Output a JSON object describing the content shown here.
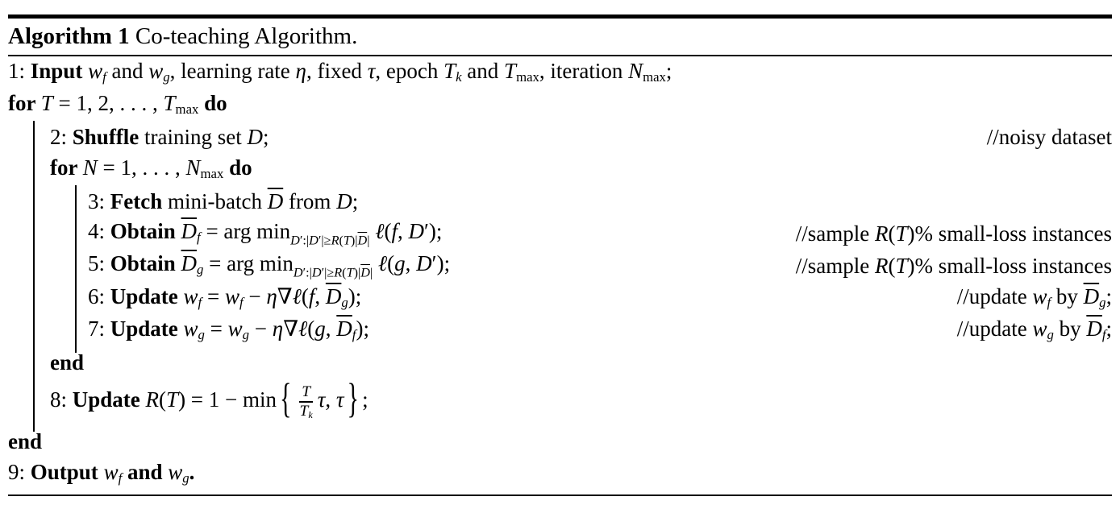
{
  "colors": {
    "text": "#000000",
    "background": "#ffffff",
    "rule": "#000000"
  },
  "header": {
    "segments": [
      {
        "t": "Algorithm 1 ",
        "s": "b"
      },
      {
        "t": "Co-teaching Algorithm.",
        "s": "p"
      }
    ]
  },
  "lines": [
    {
      "name": "input-line",
      "indent": 0,
      "content": [
        {
          "t": "1: ",
          "s": "p"
        },
        {
          "t": "Input ",
          "s": "b"
        },
        {
          "t": "w",
          "s": "i"
        },
        {
          "t": "f",
          "s": "si"
        },
        {
          "t": " and ",
          "s": "p"
        },
        {
          "t": "w",
          "s": "i"
        },
        {
          "t": "g",
          "s": "si"
        },
        {
          "t": ", learning rate ",
          "s": "p"
        },
        {
          "t": "η",
          "s": "i"
        },
        {
          "t": ", fixed ",
          "s": "p"
        },
        {
          "t": "τ",
          "s": "i"
        },
        {
          "t": ", epoch ",
          "s": "p"
        },
        {
          "t": "T",
          "s": "i"
        },
        {
          "t": "k",
          "s": "si"
        },
        {
          "t": " and ",
          "s": "p"
        },
        {
          "t": "T",
          "s": "i"
        },
        {
          "t": "max",
          "s": "sp"
        },
        {
          "t": ", iteration ",
          "s": "p"
        },
        {
          "t": "N",
          "s": "i"
        },
        {
          "t": "max",
          "s": "sp"
        },
        {
          "t": ";",
          "s": "p"
        }
      ]
    },
    {
      "name": "outer-for-loop",
      "indent": 0,
      "content": [
        {
          "t": "for ",
          "s": "b"
        },
        {
          "t": "T",
          "s": "i"
        },
        {
          "t": " = 1, 2, . . . , ",
          "s": "p"
        },
        {
          "t": "T",
          "s": "i"
        },
        {
          "t": "max",
          "s": "sp"
        },
        {
          "t": " ",
          "s": "p"
        },
        {
          "t": "do",
          "s": "b"
        }
      ]
    },
    {
      "name": "shuffle-line",
      "indent": 1,
      "content": [
        {
          "t": "2: ",
          "s": "p"
        },
        {
          "t": "Shuffle",
          "s": "b"
        },
        {
          "t": " training set ",
          "s": "p"
        },
        {
          "t": "D",
          "s": "c"
        },
        {
          "t": ";",
          "s": "p"
        }
      ],
      "comment": [
        {
          "t": "//noisy dataset",
          "s": "p"
        }
      ]
    },
    {
      "name": "inner-for-loop",
      "indent": 1,
      "content": [
        {
          "t": "for ",
          "s": "b"
        },
        {
          "t": "N",
          "s": "i"
        },
        {
          "t": " = 1, . . . , ",
          "s": "p"
        },
        {
          "t": "N",
          "s": "i"
        },
        {
          "t": "max",
          "s": "sp"
        },
        {
          "t": " ",
          "s": "p"
        },
        {
          "t": "do",
          "s": "b"
        }
      ]
    },
    {
      "name": "fetch-line",
      "indent": 2,
      "content": [
        {
          "t": "3: ",
          "s": "p"
        },
        {
          "t": "Fetch",
          "s": "b"
        },
        {
          "t": " mini-batch ",
          "s": "p"
        },
        {
          "t": "D",
          "s": "cb"
        },
        {
          "t": " from ",
          "s": "p"
        },
        {
          "t": "D",
          "s": "c"
        },
        {
          "t": ";",
          "s": "p"
        }
      ]
    },
    {
      "name": "obtain-f-line",
      "indent": 2,
      "content": [
        {
          "t": "4: ",
          "s": "p"
        },
        {
          "t": "Obtain ",
          "s": "b"
        },
        {
          "t": "D",
          "s": "cb"
        },
        {
          "t": "f",
          "s": "si"
        },
        {
          "t": " = arg min",
          "s": "p"
        },
        {
          "sub": [
            {
              "t": "D",
              "s": "c"
            },
            {
              "t": "′",
              "s": "p"
            },
            {
              "t": ":|",
              "s": "p"
            },
            {
              "t": "D",
              "s": "c"
            },
            {
              "t": "′",
              "s": "p"
            },
            {
              "t": "|",
              "s": "p"
            },
            {
              "t": "≥",
              "s": "p"
            },
            {
              "t": "R",
              "s": "i"
            },
            {
              "t": "(",
              "s": "p"
            },
            {
              "t": "T",
              "s": "i"
            },
            {
              "t": ")|",
              "s": "p"
            },
            {
              "t": "D",
              "s": "cb"
            },
            {
              "t": "|",
              "s": "p"
            }
          ]
        },
        {
          "t": " ",
          "s": "p"
        },
        {
          "t": "ℓ",
          "s": "i"
        },
        {
          "t": "(",
          "s": "p"
        },
        {
          "t": "f",
          "s": "i"
        },
        {
          "t": ", ",
          "s": "p"
        },
        {
          "t": "D",
          "s": "c"
        },
        {
          "t": "′",
          "s": "p"
        },
        {
          "t": ");",
          "s": "p"
        }
      ],
      "comment": [
        {
          "t": "//sample ",
          "s": "p"
        },
        {
          "t": "R",
          "s": "i"
        },
        {
          "t": "(",
          "s": "p"
        },
        {
          "t": "T",
          "s": "i"
        },
        {
          "t": ")% small-loss instances",
          "s": "p"
        }
      ]
    },
    {
      "name": "obtain-g-line",
      "indent": 2,
      "content": [
        {
          "t": "5: ",
          "s": "p"
        },
        {
          "t": "Obtain ",
          "s": "b"
        },
        {
          "t": "D",
          "s": "cb"
        },
        {
          "t": "g",
          "s": "si"
        },
        {
          "t": " = arg min",
          "s": "p"
        },
        {
          "sub": [
            {
              "t": "D",
              "s": "c"
            },
            {
              "t": "′",
              "s": "p"
            },
            {
              "t": ":|",
              "s": "p"
            },
            {
              "t": "D",
              "s": "c"
            },
            {
              "t": "′",
              "s": "p"
            },
            {
              "t": "|",
              "s": "p"
            },
            {
              "t": "≥",
              "s": "p"
            },
            {
              "t": "R",
              "s": "i"
            },
            {
              "t": "(",
              "s": "p"
            },
            {
              "t": "T",
              "s": "i"
            },
            {
              "t": ")|",
              "s": "p"
            },
            {
              "t": "D",
              "s": "cb"
            },
            {
              "t": "|",
              "s": "p"
            }
          ]
        },
        {
          "t": " ",
          "s": "p"
        },
        {
          "t": "ℓ",
          "s": "i"
        },
        {
          "t": "(",
          "s": "p"
        },
        {
          "t": "g",
          "s": "i"
        },
        {
          "t": ", ",
          "s": "p"
        },
        {
          "t": "D",
          "s": "c"
        },
        {
          "t": "′",
          "s": "p"
        },
        {
          "t": ");",
          "s": "p"
        }
      ],
      "comment": [
        {
          "t": "//sample ",
          "s": "p"
        },
        {
          "t": "R",
          "s": "i"
        },
        {
          "t": "(",
          "s": "p"
        },
        {
          "t": "T",
          "s": "i"
        },
        {
          "t": ")% small-loss instances",
          "s": "p"
        }
      ]
    },
    {
      "name": "update-wf-line",
      "indent": 2,
      "content": [
        {
          "t": "6: ",
          "s": "p"
        },
        {
          "t": "Update ",
          "s": "b"
        },
        {
          "t": "w",
          "s": "i"
        },
        {
          "t": "f",
          "s": "si"
        },
        {
          "t": " = ",
          "s": "p"
        },
        {
          "t": "w",
          "s": "i"
        },
        {
          "t": "f",
          "s": "si"
        },
        {
          "t": " − ",
          "s": "p"
        },
        {
          "t": "η",
          "s": "i"
        },
        {
          "t": "∇",
          "s": "p"
        },
        {
          "t": "ℓ",
          "s": "i"
        },
        {
          "t": "(",
          "s": "p"
        },
        {
          "t": "f",
          "s": "i"
        },
        {
          "t": ", ",
          "s": "p"
        },
        {
          "t": "D",
          "s": "cb"
        },
        {
          "t": "g",
          "s": "si"
        },
        {
          "t": ");",
          "s": "p"
        }
      ],
      "comment": [
        {
          "t": "//update ",
          "s": "p"
        },
        {
          "t": "w",
          "s": "i"
        },
        {
          "t": "f",
          "s": "si"
        },
        {
          "t": " by ",
          "s": "p"
        },
        {
          "t": "D",
          "s": "cb"
        },
        {
          "t": "g",
          "s": "si"
        },
        {
          "t": ";",
          "s": "p"
        }
      ]
    },
    {
      "name": "update-wg-line",
      "indent": 2,
      "content": [
        {
          "t": "7: ",
          "s": "p"
        },
        {
          "t": "Update ",
          "s": "b"
        },
        {
          "t": "w",
          "s": "i"
        },
        {
          "t": "g",
          "s": "si"
        },
        {
          "t": " = ",
          "s": "p"
        },
        {
          "t": "w",
          "s": "i"
        },
        {
          "t": "g",
          "s": "si"
        },
        {
          "t": " − ",
          "s": "p"
        },
        {
          "t": "η",
          "s": "i"
        },
        {
          "t": "∇",
          "s": "p"
        },
        {
          "t": "ℓ",
          "s": "i"
        },
        {
          "t": "(",
          "s": "p"
        },
        {
          "t": "g",
          "s": "i"
        },
        {
          "t": ", ",
          "s": "p"
        },
        {
          "t": "D",
          "s": "cb"
        },
        {
          "t": "f",
          "s": "si"
        },
        {
          "t": ");",
          "s": "p"
        }
      ],
      "comment": [
        {
          "t": "//update ",
          "s": "p"
        },
        {
          "t": "w",
          "s": "i"
        },
        {
          "t": "g",
          "s": "si"
        },
        {
          "t": " by ",
          "s": "p"
        },
        {
          "t": "D",
          "s": "cb"
        },
        {
          "t": "f",
          "s": "si"
        },
        {
          "t": ";",
          "s": "p"
        }
      ]
    },
    {
      "name": "inner-end",
      "indent": 1,
      "content": [
        {
          "t": "end",
          "s": "b"
        }
      ]
    },
    {
      "name": "update-rt-line",
      "indent": 1,
      "tall": true,
      "content": [
        {
          "t": "8: ",
          "s": "p"
        },
        {
          "t": "Update ",
          "s": "b"
        },
        {
          "t": "R",
          "s": "i"
        },
        {
          "t": "(",
          "s": "p"
        },
        {
          "t": "T",
          "s": "i"
        },
        {
          "t": ") = 1 − min",
          "s": "p"
        },
        {
          "t": "{",
          "s": "br"
        },
        {
          "frac": {
            "num": [
              {
                "t": "T",
                "s": "i"
              }
            ],
            "den": [
              {
                "t": "T",
                "s": "i"
              },
              {
                "t": "k",
                "s": "si"
              }
            ]
          }
        },
        {
          "t": "τ",
          "s": "i"
        },
        {
          "t": ", ",
          "s": "p"
        },
        {
          "t": "τ",
          "s": "i"
        },
        {
          "t": "}",
          "s": "br"
        },
        {
          "t": ";",
          "s": "p"
        }
      ]
    },
    {
      "name": "outer-end",
      "indent": 0,
      "content": [
        {
          "t": "end",
          "s": "b"
        }
      ]
    },
    {
      "name": "output-line",
      "indent": 0,
      "content": [
        {
          "t": "9: ",
          "s": "p"
        },
        {
          "t": "Output ",
          "s": "b"
        },
        {
          "t": "w",
          "s": "i"
        },
        {
          "t": "f",
          "s": "si"
        },
        {
          "t": " and ",
          "s": "b"
        },
        {
          "t": "w",
          "s": "i"
        },
        {
          "t": "g",
          "s": "si"
        },
        {
          "t": ".",
          "s": "b"
        }
      ]
    }
  ]
}
